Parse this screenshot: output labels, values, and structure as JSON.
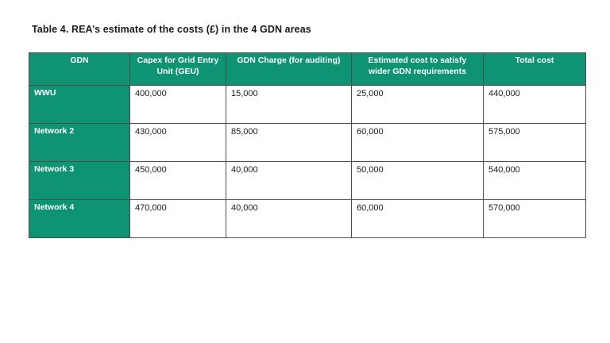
{
  "title": "Table 4. REA’s estimate of the costs (£) in the 4 GDN areas",
  "table": {
    "columns": [
      "GDN",
      "Capex for Grid Entry Unit (GEU)",
      "GDN Charge (for auditing)",
      "Estimated cost to satisfy wider GDN requirements",
      "Total cost"
    ],
    "rows": [
      {
        "gdn": "WWU",
        "capex": "400,000",
        "charge": "15,000",
        "wider": "25,000",
        "total": "440,000"
      },
      {
        "gdn": "Network 2",
        "capex": "430,000",
        "charge": "85,000",
        "wider": "60,000",
        "total": "575,000"
      },
      {
        "gdn": "Network 3",
        "capex": "450,000",
        "charge": "40,000",
        "wider": "50,000",
        "total": "540,000"
      },
      {
        "gdn": "Network 4",
        "capex": "470,000",
        "charge": "40,000",
        "wider": "60,000",
        "total": "570,000"
      }
    ]
  },
  "colors": {
    "header_green": "#0e9472",
    "header_text": "#ffffff",
    "text": "#1a1a1a",
    "border": "#4d4d4d"
  }
}
